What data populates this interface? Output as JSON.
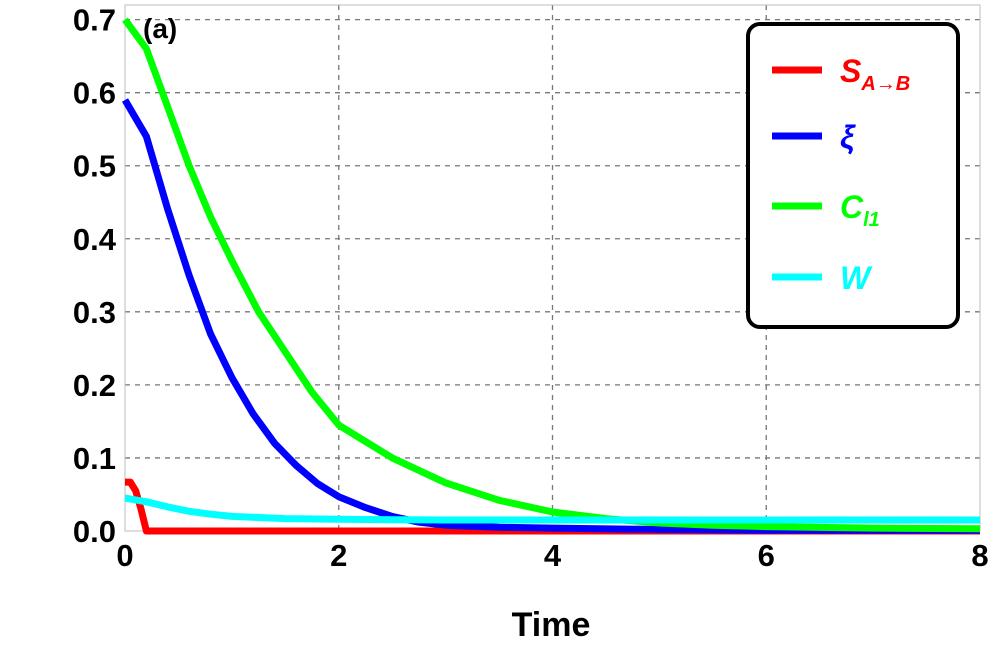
{
  "chart_data": {
    "type": "line",
    "title": "",
    "panel_label": "(a)",
    "xlabel": "Time",
    "ylabel": "",
    "xlim": [
      0,
      8
    ],
    "ylim": [
      0,
      0.72
    ],
    "x_ticks": [
      "0",
      "2",
      "4",
      "6",
      "8"
    ],
    "y_ticks": [
      "0.0",
      "0.1",
      "0.2",
      "0.3",
      "0.4",
      "0.5",
      "0.6",
      "0.7"
    ],
    "grid": true,
    "legend_position": "top-right",
    "series": [
      {
        "name": "S",
        "name_sub": "A→B",
        "color": "#ff0000",
        "x": [
          0,
          0.05,
          0.1,
          0.15,
          0.2,
          0.3,
          1,
          2,
          4,
          6,
          8
        ],
        "y": [
          0.067,
          0.067,
          0.055,
          0.03,
          0.0,
          0.0,
          0.0,
          0.0,
          0.0,
          0.0,
          0.0
        ]
      },
      {
        "name": "ξ",
        "name_sub": "",
        "color": "#0000ff",
        "x": [
          0,
          0.2,
          0.4,
          0.6,
          0.8,
          1.0,
          1.2,
          1.4,
          1.6,
          1.8,
          2.0,
          2.25,
          2.5,
          2.75,
          3.0,
          3.5,
          4.0,
          5.0,
          6.0,
          8.0
        ],
        "y": [
          0.59,
          0.54,
          0.44,
          0.35,
          0.27,
          0.21,
          0.16,
          0.12,
          0.09,
          0.065,
          0.047,
          0.032,
          0.02,
          0.012,
          0.008,
          0.005,
          0.004,
          0.002,
          0.001,
          0.001
        ]
      },
      {
        "name": "C",
        "name_sub": "l1",
        "color": "#00ff00",
        "x": [
          0,
          0.2,
          0.4,
          0.6,
          0.8,
          1.0,
          1.25,
          1.5,
          1.75,
          2.0,
          2.5,
          3.0,
          3.5,
          4.0,
          4.5,
          5.0,
          5.5,
          6.0,
          7.0,
          8.0
        ],
        "y": [
          0.7,
          0.66,
          0.58,
          0.5,
          0.43,
          0.37,
          0.3,
          0.245,
          0.19,
          0.145,
          0.1,
          0.066,
          0.042,
          0.026,
          0.017,
          0.011,
          0.008,
          0.006,
          0.004,
          0.003
        ]
      },
      {
        "name": "W",
        "name_sub": "",
        "color": "#00ffff",
        "x": [
          0,
          0.2,
          0.4,
          0.6,
          0.8,
          1.0,
          1.5,
          2.0,
          3.0,
          4.0,
          6.0,
          8.0
        ],
        "y": [
          0.045,
          0.04,
          0.033,
          0.027,
          0.023,
          0.02,
          0.017,
          0.016,
          0.015,
          0.015,
          0.015,
          0.015
        ]
      }
    ]
  }
}
